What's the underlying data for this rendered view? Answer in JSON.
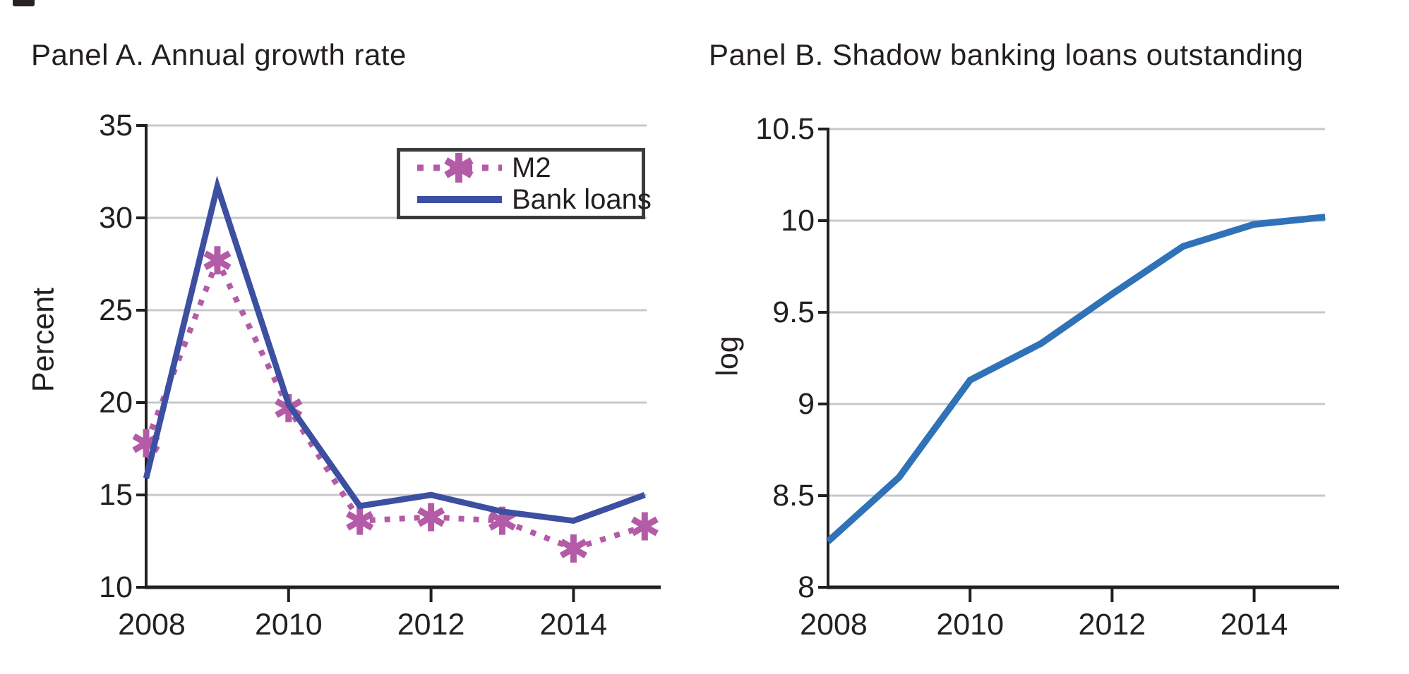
{
  "figure": {
    "background": "#ffffff",
    "text_color": "#231f20",
    "gridline_color": "#c7c8ca",
    "axis_color": "#231f20"
  },
  "chart_data": [
    {
      "type": "line",
      "title": "Panel A. Annual growth rate",
      "ylabel": "Percent",
      "xlabel": "",
      "x": [
        2008,
        2009,
        2010,
        2011,
        2012,
        2013,
        2014,
        2015
      ],
      "series": [
        {
          "name": "M2",
          "style": "dotted",
          "marker": "asterisk",
          "color": "#b45ba7",
          "values": [
            17.8,
            27.7,
            19.7,
            13.6,
            13.8,
            13.6,
            12.1,
            13.3
          ]
        },
        {
          "name": "Bank loans",
          "style": "solid",
          "marker": "none",
          "color": "#3c4fa1",
          "values": [
            15.9,
            31.7,
            19.9,
            14.4,
            15.0,
            14.1,
            13.6,
            15.0
          ]
        }
      ],
      "ylim": [
        10,
        35
      ],
      "yticks": [
        "10",
        "15",
        "20",
        "25",
        "30",
        "35"
      ],
      "xticks": [
        "2008",
        "2010",
        "2012",
        "2014"
      ],
      "grid": "horizontal",
      "legend_position": "upper right",
      "legend_labels": [
        "M2",
        "Bank loans"
      ]
    },
    {
      "type": "line",
      "title": "Panel B. Shadow banking loans outstanding",
      "ylabel": "log",
      "xlabel": "",
      "x": [
        2008,
        2009,
        2010,
        2011,
        2012,
        2013,
        2014,
        2015
      ],
      "series": [
        {
          "name": "Shadow banking loans outstanding",
          "style": "solid",
          "marker": "none",
          "color": "#2f72b8",
          "values": [
            8.25,
            8.6,
            9.13,
            9.33,
            9.6,
            9.86,
            9.98,
            10.02
          ]
        }
      ],
      "ylim": [
        8,
        10.5
      ],
      "yticks": [
        "8",
        "8.5",
        "9",
        "9.5",
        "10",
        "10.5"
      ],
      "xticks": [
        "2008",
        "2010",
        "2012",
        "2014"
      ],
      "grid": "horizontal",
      "legend_position": "none"
    }
  ]
}
